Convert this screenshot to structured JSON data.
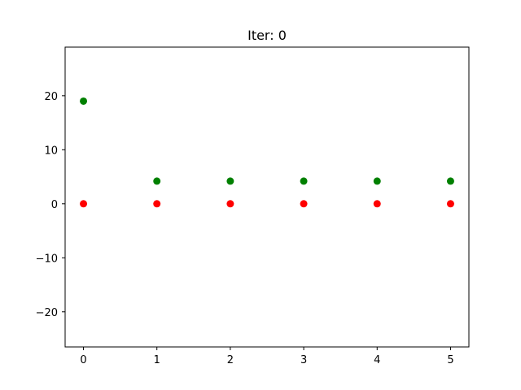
{
  "chart_data": {
    "type": "scatter",
    "title": "Iter: 0",
    "xlabel": "",
    "ylabel": "",
    "xlim": [
      -0.25,
      5.25
    ],
    "ylim": [
      -26.5,
      29.0
    ],
    "xticks": [
      0,
      1,
      2,
      3,
      4,
      5
    ],
    "xtick_labels": [
      "0",
      "1",
      "2",
      "3",
      "4",
      "5"
    ],
    "yticks": [
      -20,
      -10,
      0,
      10,
      20
    ],
    "ytick_labels": [
      "−20",
      "−10",
      "0",
      "10",
      "20"
    ],
    "grid": false,
    "series": [
      {
        "color": "#008000",
        "x": [
          0,
          1,
          2,
          3,
          4,
          5
        ],
        "y": [
          19,
          4.2,
          4.2,
          4.2,
          4.2,
          4.2
        ]
      },
      {
        "color": "#ff0000",
        "x": [
          0,
          1,
          2,
          3,
          4,
          5
        ],
        "y": [
          0,
          0,
          0,
          0,
          0,
          0
        ]
      }
    ]
  }
}
